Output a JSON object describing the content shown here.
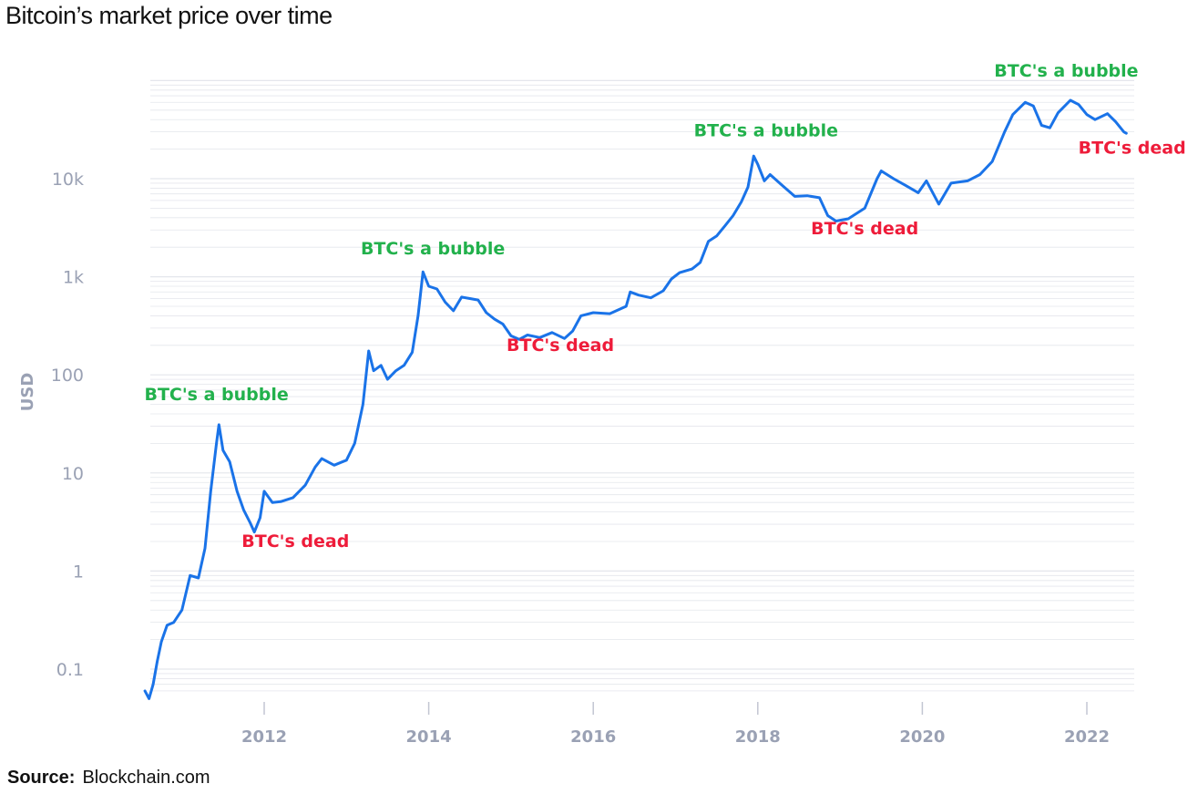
{
  "title": "Bitcoin’s market price over time",
  "source": {
    "label": "Source:",
    "value": "Blockchain.com"
  },
  "colors": {
    "line": "#1a73e8",
    "bubble": "#22b14c",
    "dead": "#ee1c3a",
    "tick": "#9aa1b4",
    "grid": "#e4e6ec"
  },
  "chart_data": {
    "type": "line",
    "title": "",
    "xlabel": "",
    "ylabel": "USD",
    "yscale": "log",
    "ylim": [
      0.045,
      90000
    ],
    "xlim": [
      2010.5,
      2022.8
    ],
    "grid": true,
    "y_ticks": [
      {
        "value": 0.1,
        "label": "0.1"
      },
      {
        "value": 1,
        "label": "1"
      },
      {
        "value": 10,
        "label": "10"
      },
      {
        "value": 100,
        "label": "100"
      },
      {
        "value": 1000,
        "label": "1k"
      },
      {
        "value": 10000,
        "label": "10k"
      }
    ],
    "x_ticks": [
      {
        "value": 2012,
        "label": "2012"
      },
      {
        "value": 2014,
        "label": "2014"
      },
      {
        "value": 2016,
        "label": "2016"
      },
      {
        "value": 2018,
        "label": "2018"
      },
      {
        "value": 2020,
        "label": "2020"
      },
      {
        "value": 2022,
        "label": "2022"
      }
    ],
    "series": [
      {
        "name": "",
        "points": [
          [
            2010.55,
            0.06
          ],
          [
            2010.6,
            0.05
          ],
          [
            2010.65,
            0.07
          ],
          [
            2010.7,
            0.12
          ],
          [
            2010.75,
            0.19
          ],
          [
            2010.82,
            0.28
          ],
          [
            2010.9,
            0.3
          ],
          [
            2011.0,
            0.4
          ],
          [
            2011.1,
            0.9
          ],
          [
            2011.2,
            0.85
          ],
          [
            2011.28,
            1.7
          ],
          [
            2011.35,
            6.5
          ],
          [
            2011.42,
            20
          ],
          [
            2011.45,
            31
          ],
          [
            2011.5,
            17
          ],
          [
            2011.58,
            13
          ],
          [
            2011.67,
            6.5
          ],
          [
            2011.75,
            4.2
          ],
          [
            2011.83,
            3.1
          ],
          [
            2011.88,
            2.5
          ],
          [
            2011.95,
            3.5
          ],
          [
            2012.0,
            6.5
          ],
          [
            2012.1,
            5.0
          ],
          [
            2012.2,
            5.1
          ],
          [
            2012.35,
            5.6
          ],
          [
            2012.5,
            7.5
          ],
          [
            2012.62,
            11.5
          ],
          [
            2012.7,
            14
          ],
          [
            2012.85,
            12
          ],
          [
            2013.0,
            13.5
          ],
          [
            2013.1,
            20
          ],
          [
            2013.2,
            50
          ],
          [
            2013.27,
            175
          ],
          [
            2013.33,
            110
          ],
          [
            2013.42,
            125
          ],
          [
            2013.5,
            90
          ],
          [
            2013.6,
            110
          ],
          [
            2013.7,
            125
          ],
          [
            2013.8,
            170
          ],
          [
            2013.87,
            400
          ],
          [
            2013.93,
            1120
          ],
          [
            2014.0,
            800
          ],
          [
            2014.1,
            750
          ],
          [
            2014.2,
            550
          ],
          [
            2014.3,
            450
          ],
          [
            2014.4,
            620
          ],
          [
            2014.5,
            600
          ],
          [
            2014.6,
            580
          ],
          [
            2014.7,
            430
          ],
          [
            2014.8,
            370
          ],
          [
            2014.9,
            330
          ],
          [
            2015.0,
            250
          ],
          [
            2015.1,
            230
          ],
          [
            2015.2,
            255
          ],
          [
            2015.35,
            240
          ],
          [
            2015.5,
            270
          ],
          [
            2015.65,
            235
          ],
          [
            2015.75,
            280
          ],
          [
            2015.85,
            400
          ],
          [
            2016.0,
            430
          ],
          [
            2016.2,
            420
          ],
          [
            2016.4,
            500
          ],
          [
            2016.45,
            700
          ],
          [
            2016.55,
            650
          ],
          [
            2016.7,
            610
          ],
          [
            2016.85,
            720
          ],
          [
            2016.95,
            950
          ],
          [
            2017.05,
            1100
          ],
          [
            2017.2,
            1200
          ],
          [
            2017.3,
            1400
          ],
          [
            2017.4,
            2300
          ],
          [
            2017.5,
            2600
          ],
          [
            2017.6,
            3300
          ],
          [
            2017.7,
            4200
          ],
          [
            2017.8,
            5800
          ],
          [
            2017.88,
            8200
          ],
          [
            2017.95,
            17000
          ],
          [
            2018.0,
            14000
          ],
          [
            2018.08,
            9500
          ],
          [
            2018.15,
            11000
          ],
          [
            2018.3,
            8500
          ],
          [
            2018.45,
            6600
          ],
          [
            2018.6,
            6700
          ],
          [
            2018.75,
            6400
          ],
          [
            2018.85,
            4200
          ],
          [
            2018.95,
            3700
          ],
          [
            2019.1,
            3900
          ],
          [
            2019.3,
            5000
          ],
          [
            2019.45,
            10000
          ],
          [
            2019.5,
            12000
          ],
          [
            2019.65,
            10000
          ],
          [
            2019.8,
            8500
          ],
          [
            2019.95,
            7200
          ],
          [
            2020.05,
            9500
          ],
          [
            2020.2,
            5500
          ],
          [
            2020.35,
            9000
          ],
          [
            2020.55,
            9500
          ],
          [
            2020.7,
            11000
          ],
          [
            2020.85,
            15000
          ],
          [
            2021.0,
            30000
          ],
          [
            2021.1,
            45000
          ],
          [
            2021.25,
            60000
          ],
          [
            2021.35,
            55000
          ],
          [
            2021.45,
            35000
          ],
          [
            2021.55,
            33000
          ],
          [
            2021.65,
            47000
          ],
          [
            2021.8,
            63000
          ],
          [
            2021.9,
            57000
          ],
          [
            2022.0,
            45000
          ],
          [
            2022.1,
            40000
          ],
          [
            2022.25,
            46000
          ],
          [
            2022.35,
            38000
          ],
          [
            2022.45,
            30000
          ],
          [
            2022.48,
            29000
          ]
        ]
      }
    ],
    "annotations": [
      {
        "text": "BTC's a bubble",
        "type": "bubble",
        "x": 2011.42,
        "y": 55
      },
      {
        "text": "BTC's dead",
        "type": "dead",
        "x": 2012.38,
        "y": 1.75
      },
      {
        "text": "BTC's a bubble",
        "type": "bubble",
        "x": 2014.05,
        "y": 1700
      },
      {
        "text": "BTC's dead",
        "type": "dead",
        "x": 2015.6,
        "y": 175
      },
      {
        "text": "BTC's a bubble",
        "type": "bubble",
        "x": 2018.1,
        "y": 27000
      },
      {
        "text": "BTC's dead",
        "type": "dead",
        "x": 2019.3,
        "y": 2700
      },
      {
        "text": "BTC's a bubble",
        "type": "bubble",
        "x": 2021.75,
        "y": 110000
      },
      {
        "text": "BTC's dead",
        "type": "dead",
        "x": 2022.55,
        "y": 18000
      }
    ]
  }
}
